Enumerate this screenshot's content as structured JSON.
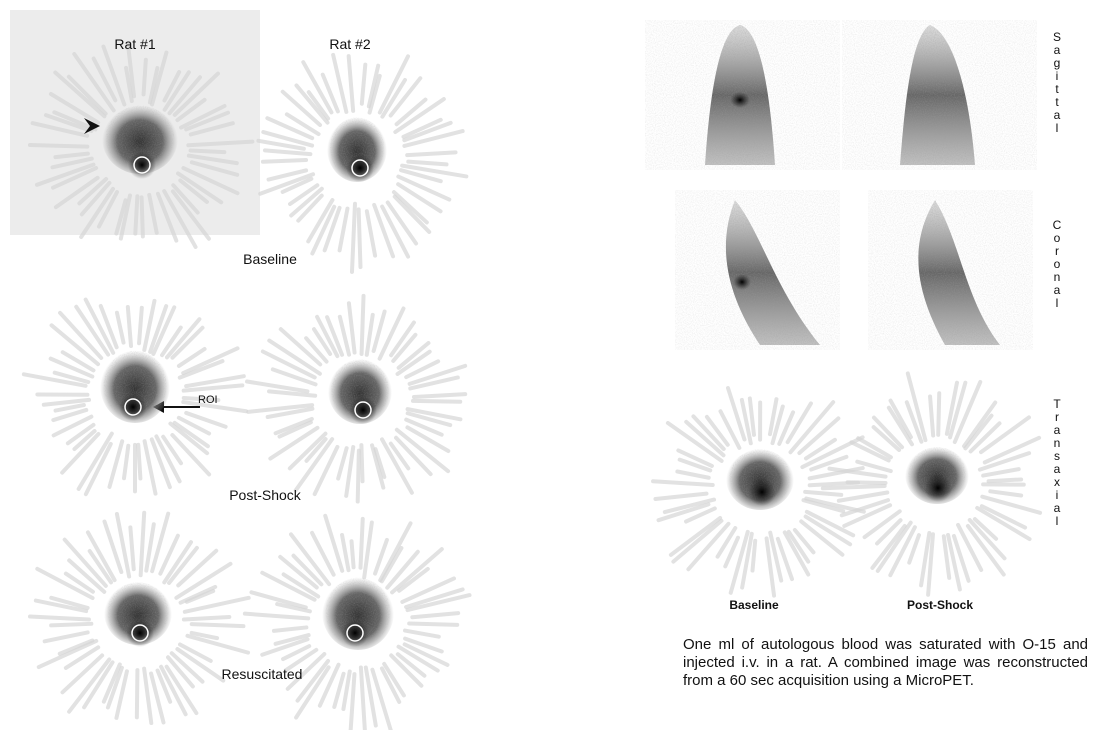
{
  "left_panel": {
    "column_labels": [
      "Rat #1",
      "Rat #2"
    ],
    "row_labels": [
      "Baseline",
      "Post-Shock",
      "Resuscitated"
    ],
    "roi_label": "ROI"
  },
  "right_panel": {
    "view_labels": [
      "Sagittal",
      "Coronal",
      "Transaxial"
    ],
    "column_labels": [
      "Baseline",
      "Post-Shock"
    ]
  },
  "caption": "One ml of autologous blood was saturated with O-15 and injected i.v. in a rat.  A combined image was reconstructed from a  60 sec acquisition using a MicroPET."
}
